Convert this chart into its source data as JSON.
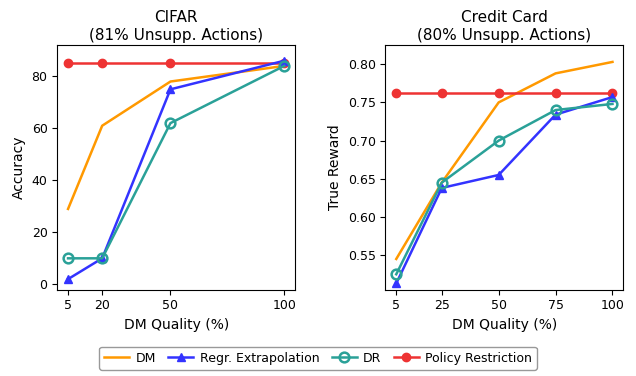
{
  "cifar": {
    "title": "CIFAR\n(81% Unsupp. Actions)",
    "xlabel": "DM Quality (%)",
    "ylabel": "Accuracy",
    "x": [
      5,
      20,
      50,
      100
    ],
    "dm": [
      29,
      61,
      78,
      84
    ],
    "regr_extrap": [
      2,
      10,
      75,
      86
    ],
    "dr": [
      10,
      10,
      62,
      84
    ],
    "policy_restr": [
      85,
      85,
      85,
      85
    ],
    "xticks": [
      5,
      20,
      50,
      100
    ],
    "ylim": [
      -2,
      92
    ],
    "yticks": [
      0,
      20,
      40,
      60,
      80
    ]
  },
  "credit": {
    "title": "Credit Card\n(80% Unsupp. Actions)",
    "xlabel": "DM Quality (%)",
    "ylabel": "True Reward",
    "x": [
      5,
      25,
      50,
      75,
      100
    ],
    "dm": [
      0.545,
      0.645,
      0.75,
      0.788,
      0.803
    ],
    "regr_extrap": [
      0.513,
      0.638,
      0.655,
      0.734,
      0.757
    ],
    "dr": [
      0.525,
      0.645,
      0.7,
      0.74,
      0.748
    ],
    "policy_restr": [
      0.762,
      0.762,
      0.762,
      0.762,
      0.762
    ],
    "xticks": [
      5,
      25,
      50,
      75,
      100
    ],
    "ylim": [
      0.505,
      0.825
    ],
    "yticks": [
      0.55,
      0.6,
      0.65,
      0.7,
      0.75,
      0.8
    ]
  },
  "colors": {
    "dm": "#FF9900",
    "regr_extrap": "#3333FF",
    "dr": "#2AA198",
    "policy_restr": "#EE3333"
  }
}
